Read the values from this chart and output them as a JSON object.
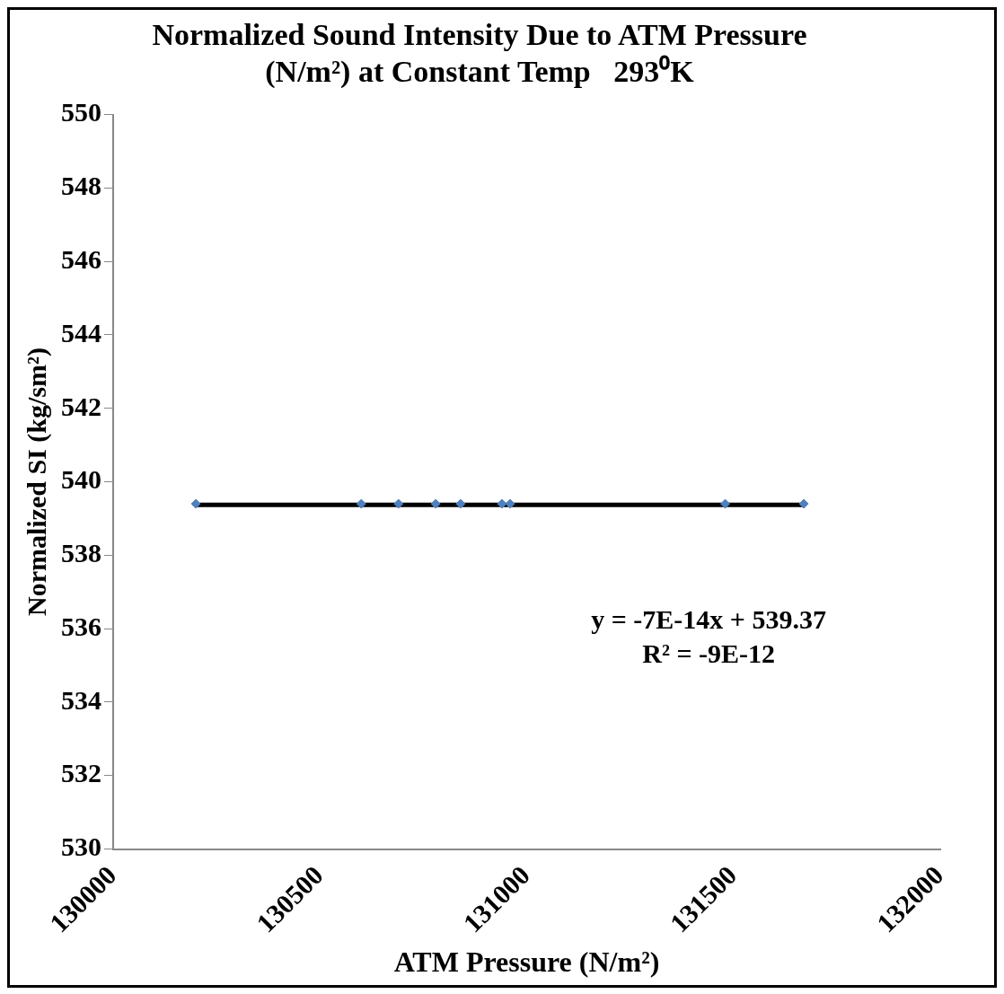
{
  "chart_data": {
    "type": "scatter",
    "title": "Normalized Sound Intensity Due to ATM Pressure\n(N/m²) at Constant Temp   293⁰K",
    "xlabel": "ATM Pressure (N/m²)",
    "ylabel": "Normalized SI (kg/sm²)",
    "series": [
      {
        "color": "#4f81bd",
        "x": [
          130200,
          130600,
          130690,
          130780,
          130840,
          130940,
          130960,
          131480,
          131670
        ],
        "values": [
          539.4,
          539.4,
          539.4,
          539.4,
          539.4,
          539.4,
          539.4,
          539.4,
          539.4
        ],
        "marker": "diamond"
      },
      {
        "type": "line",
        "color": "#000000",
        "x": [
          130200,
          131670
        ],
        "values": [
          539.37,
          539.37
        ],
        "marker": "none",
        "line_style": "solid"
      }
    ],
    "annotations": [
      "y = -7E-14x + 539.37",
      "R² = -9E-12"
    ],
    "xlim": [
      130000,
      132000
    ],
    "xticks": [
      130000,
      130500,
      131000,
      131500,
      132000
    ],
    "ylim": [
      530,
      550
    ],
    "yticks": [
      530,
      532,
      534,
      536,
      538,
      540,
      542,
      544,
      546,
      548,
      550
    ],
    "grid": false,
    "legend": false
  }
}
